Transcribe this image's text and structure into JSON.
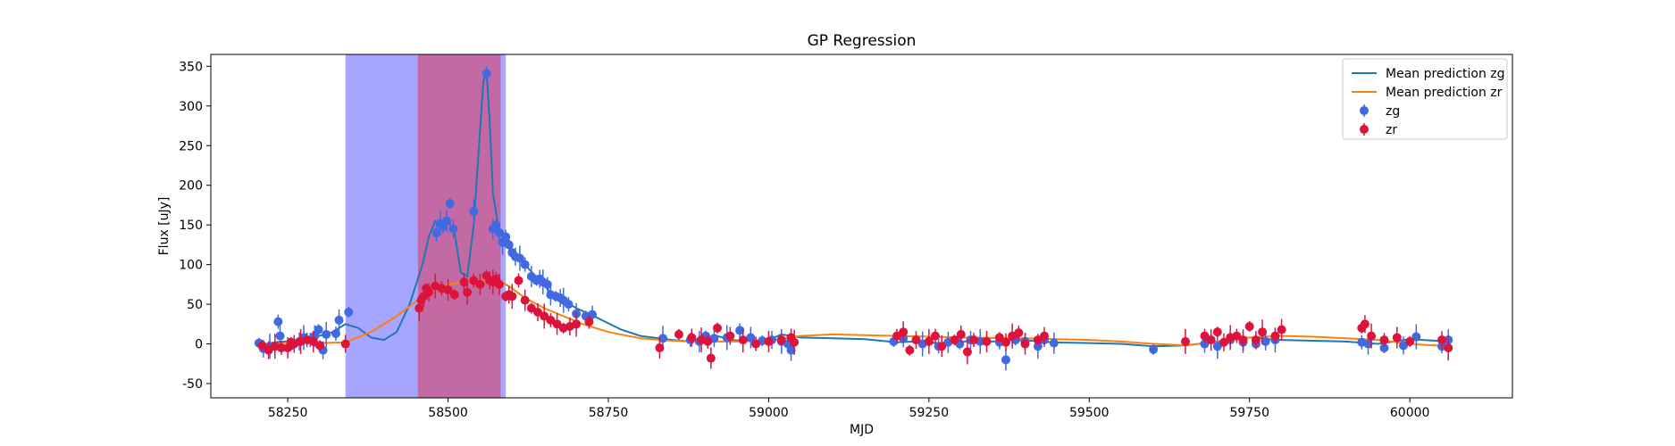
{
  "chart_data": {
    "type": "scatter",
    "title": "GP Regression",
    "xlabel": "MJD",
    "ylabel": "Flux [uJy]",
    "xlim": [
      58130,
      60160
    ],
    "ylim": [
      -68,
      365
    ],
    "xticks": [
      58250,
      58500,
      58750,
      59000,
      59250,
      59500,
      59750,
      60000
    ],
    "yticks": [
      -50,
      0,
      50,
      100,
      150,
      200,
      250,
      300,
      350
    ],
    "grid": false,
    "legend_position": "top-right",
    "shaded_regions": [
      {
        "x0": 58340,
        "x1": 58590,
        "color": "#a6a6ff"
      },
      {
        "x0": 58453,
        "x1": 58582,
        "color": "#c36aa4"
      }
    ],
    "lines": [
      {
        "name": "Mean prediction zg",
        "color": "#1f77b4",
        "x": [
          58205,
          58230,
          58260,
          58290,
          58320,
          58340,
          58360,
          58380,
          58400,
          58420,
          58440,
          58460,
          58470,
          58480,
          58490,
          58500,
          58510,
          58520,
          58530,
          58540,
          58550,
          58555,
          58560,
          58565,
          58570,
          58580,
          58590,
          58600,
          58620,
          58640,
          58660,
          58680,
          58700,
          58720,
          58740,
          58770,
          58800,
          58850,
          58880,
          58900,
          58920,
          58940,
          58960,
          58980,
          59000,
          59020,
          59050,
          59100,
          59150,
          59200,
          59230,
          59260,
          59290,
          59320,
          59350,
          59380,
          59410,
          59440,
          59500,
          59550,
          59600,
          59650,
          59690,
          59720,
          59750,
          59780,
          59800,
          59850,
          59900,
          59950,
          60000,
          60060
        ],
        "y": [
          -2,
          2,
          4,
          8,
          15,
          25,
          20,
          8,
          5,
          15,
          50,
          100,
          135,
          155,
          150,
          155,
          140,
          90,
          85,
          150,
          270,
          330,
          345,
          280,
          190,
          140,
          130,
          118,
          100,
          82,
          65,
          55,
          45,
          38,
          30,
          18,
          10,
          5,
          3,
          8,
          10,
          5,
          4,
          3,
          5,
          12,
          8,
          7,
          6,
          2,
          3,
          1,
          2,
          4,
          3,
          5,
          4,
          2,
          1,
          0,
          -3,
          -2,
          2,
          5,
          8,
          6,
          5,
          4,
          3,
          0,
          6,
          3
        ]
      },
      {
        "name": "Mean prediction zr",
        "color": "#ff7f0e",
        "x": [
          58205,
          58250,
          58300,
          58340,
          58380,
          58420,
          58460,
          58500,
          58540,
          58580,
          58600,
          58620,
          58650,
          58680,
          58710,
          58750,
          58800,
          58850,
          58900,
          58950,
          59000,
          59050,
          59100,
          59200,
          59300,
          59400,
          59450,
          59500,
          59550,
          59600,
          59650,
          59700,
          59750,
          59800,
          59850,
          59900,
          59950,
          60000,
          60060
        ],
        "y": [
          -3,
          2,
          1,
          2,
          15,
          35,
          60,
          75,
          80,
          80,
          70,
          58,
          45,
          35,
          25,
          15,
          7,
          4,
          3,
          3,
          4,
          10,
          12,
          10,
          8,
          7,
          6,
          5,
          3,
          0,
          -2,
          3,
          8,
          10,
          9,
          7,
          5,
          0,
          -3
        ]
      }
    ],
    "series": [
      {
        "name": "zg",
        "color": "#4169e1",
        "x": [
          58205,
          58212,
          58222,
          58235,
          58238,
          58255,
          58268,
          58275,
          58285,
          58292,
          58298,
          58305,
          58310,
          58325,
          58330,
          58345,
          58482,
          58488,
          58492,
          58498,
          58503,
          58508,
          58540,
          58560,
          58570,
          58575,
          58580,
          58585,
          58590,
          58595,
          58600,
          58605,
          58612,
          58620,
          58630,
          58638,
          58643,
          58648,
          58655,
          58660,
          58668,
          58675,
          58680,
          58688,
          58700,
          58715,
          58725,
          58835,
          58878,
          58892,
          58902,
          58915,
          58935,
          58955,
          58972,
          58990,
          59005,
          59020,
          59030,
          59035,
          59195,
          59210,
          59240,
          59265,
          59280,
          59298,
          59315,
          59330,
          59360,
          59370,
          59385,
          59400,
          59420,
          59430,
          59445,
          59600,
          59680,
          59700,
          59720,
          59740,
          59760,
          59775,
          59790,
          59925,
          59935,
          59960,
          59990,
          60010,
          60050,
          60060
        ],
        "y": [
          1,
          -6,
          -3,
          28,
          10,
          -2,
          3,
          8,
          5,
          10,
          18,
          -8,
          12,
          13,
          30,
          40,
          140,
          152,
          148,
          155,
          177,
          145,
          167,
          341,
          145,
          150,
          140,
          128,
          135,
          125,
          115,
          110,
          108,
          100,
          85,
          80,
          82,
          78,
          75,
          62,
          60,
          58,
          55,
          50,
          38,
          35,
          37,
          7,
          5,
          3,
          10,
          7,
          8,
          17,
          8,
          4,
          5,
          3,
          0,
          -8,
          3,
          7,
          0,
          -3,
          2,
          0,
          5,
          3,
          2,
          -20,
          5,
          3,
          -3,
          5,
          1,
          -7,
          0,
          -3,
          5,
          2,
          0,
          3,
          5,
          2,
          0,
          -5,
          -2,
          9,
          -3,
          5
        ]
      },
      {
        "name": "zr",
        "color": "#dc143c",
        "x": [
          58210,
          58220,
          58230,
          58240,
          58250,
          58255,
          58260,
          58270,
          58280,
          58290,
          58300,
          58340,
          58455,
          58458,
          58462,
          58466,
          58470,
          58480,
          58490,
          58500,
          58510,
          58525,
          58530,
          58540,
          58550,
          58560,
          58565,
          58570,
          58575,
          58580,
          58590,
          58595,
          58600,
          58610,
          58620,
          58630,
          58640,
          58650,
          58660,
          58670,
          58680,
          58690,
          58700,
          58720,
          58830,
          58860,
          58880,
          58895,
          58905,
          58910,
          58920,
          58940,
          58960,
          58980,
          59000,
          59020,
          59035,
          59040,
          59200,
          59210,
          59220,
          59230,
          59250,
          59260,
          59270,
          59290,
          59300,
          59310,
          59320,
          59340,
          59360,
          59370,
          59380,
          59390,
          59400,
          59420,
          59430,
          59650,
          59680,
          59690,
          59700,
          59710,
          59720,
          59730,
          59740,
          59750,
          59760,
          59770,
          59790,
          59800,
          59925,
          59930,
          59940,
          59960,
          59980,
          60000,
          60050,
          60060
        ],
        "y": [
          -2,
          -8,
          -3,
          -5,
          -5,
          2,
          0,
          3,
          5,
          3,
          -2,
          0,
          45,
          55,
          60,
          70,
          65,
          73,
          70,
          68,
          62,
          78,
          65,
          80,
          75,
          86,
          80,
          78,
          82,
          75,
          60,
          62,
          60,
          80,
          55,
          45,
          40,
          35,
          30,
          25,
          20,
          22,
          25,
          28,
          -5,
          12,
          8,
          5,
          3,
          -18,
          20,
          10,
          5,
          0,
          3,
          5,
          8,
          2,
          10,
          15,
          -8,
          5,
          3,
          10,
          -3,
          5,
          12,
          -10,
          5,
          3,
          8,
          2,
          10,
          14,
          0,
          5,
          10,
          3,
          10,
          5,
          15,
          2,
          8,
          10,
          5,
          22,
          5,
          15,
          10,
          18,
          20,
          25,
          10,
          5,
          8,
          3,
          5,
          -5
        ]
      }
    ]
  }
}
